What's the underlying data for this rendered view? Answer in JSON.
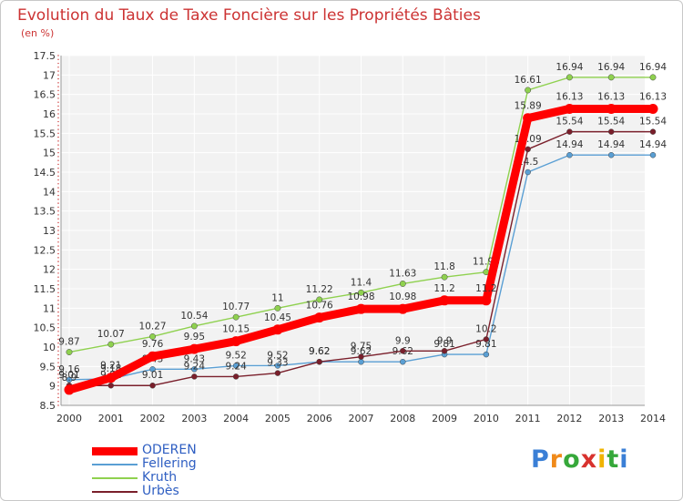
{
  "page": {
    "title": "Evolution du Taux de Taxe Foncière sur les Propriétés Bâties",
    "unit": "(en %)"
  },
  "brand": {
    "text": "Proxiti",
    "colors": [
      "#3a7fd6",
      "#f08a1a",
      "#36a83a",
      "#d8322e",
      "#f0b400",
      "#36a83a",
      "#3a7fd6"
    ]
  },
  "chart_data": {
    "type": "line",
    "title": "Evolution du Taux de Taxe Foncière sur les Propriétés Bâties",
    "ylabel": "(en %)",
    "xlabel": "",
    "x": [
      "2000",
      "2001",
      "2002",
      "2003",
      "2004",
      "2005",
      "2006",
      "2007",
      "2008",
      "2009",
      "2010",
      "2011",
      "2012",
      "2013",
      "2014"
    ],
    "ylim": [
      8.5,
      17.5
    ],
    "yticks": [
      "8.5",
      "9",
      "9.5",
      "10",
      "10.5",
      "11",
      "11.5",
      "12",
      "12.5",
      "13",
      "13.5",
      "14",
      "14.5",
      "15",
      "15.5",
      "16",
      "16.5",
      "17",
      "17.5"
    ],
    "grid": true,
    "legend_position": "bottom-left",
    "series": [
      {
        "name": "Kruth",
        "color": "#8fd14f",
        "values": [
          9.87,
          10.07,
          10.27,
          10.54,
          10.77,
          11,
          11.22,
          11.4,
          11.63,
          11.8,
          11.93,
          16.61,
          16.94,
          16.94,
          16.94
        ],
        "labels": [
          "9.87",
          "10.07",
          "10.27",
          "10.54",
          "10.77",
          "11",
          "11.22",
          "11.4",
          "11.63",
          "11.8",
          "11.93",
          "16.61",
          "16.94",
          "16.94",
          "16.94"
        ]
      },
      {
        "name": "Fellering",
        "color": "#5a9fd4",
        "values": [
          9.16,
          9.18,
          9.43,
          9.43,
          9.52,
          9.52,
          9.62,
          9.62,
          9.62,
          9.81,
          9.81,
          14.5,
          14.94,
          14.94,
          14.94
        ],
        "labels": [
          "9.16",
          "9.18",
          "9.43",
          "9.43",
          "9.52",
          "9.52",
          "9.62",
          "9.62",
          "9.62",
          "9.81",
          "9.81",
          "14.5",
          "14.94",
          "14.94",
          "14.94"
        ]
      },
      {
        "name": "Urbès",
        "color": "#7a1f2b",
        "values": [
          9.01,
          9.01,
          9.01,
          9.24,
          9.24,
          9.33,
          9.62,
          9.75,
          9.9,
          9.9,
          10.2,
          15.09,
          15.54,
          15.54,
          15.54
        ],
        "labels": [
          "9.01",
          "9.01",
          "9.01",
          "9.24",
          "9.24",
          "9.33",
          "9.62",
          "9.75",
          "9.9",
          "9.9",
          "10.2",
          "15.09",
          "15.54",
          "15.54",
          "15.54"
        ]
      },
      {
        "name": "ODEREN",
        "color": "#ff0000",
        "values": [
          8.9,
          9.21,
          9.76,
          9.95,
          10.15,
          10.45,
          10.76,
          10.98,
          10.98,
          11.2,
          11.2,
          15.89,
          16.13,
          16.13,
          16.13
        ],
        "labels": [
          "8.9",
          "9.21",
          "9.76",
          "9.95",
          "10.15",
          "10.45",
          "10.76",
          "10.98",
          "10.98",
          "11.2",
          "11.2",
          "15.89",
          "16.13",
          "16.13",
          "16.13"
        ]
      }
    ],
    "legend": [
      {
        "name": "ODEREN",
        "color": "#ff0000"
      },
      {
        "name": "Fellering",
        "color": "#5a9fd4"
      },
      {
        "name": "Kruth",
        "color": "#8fd14f"
      },
      {
        "name": "Urbès",
        "color": "#7a1f2b"
      }
    ]
  }
}
